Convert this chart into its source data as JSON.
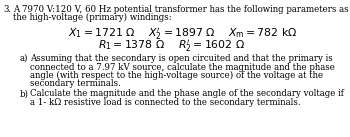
{
  "number": "3.",
  "intro_line1": "A 7970 V:120 V, 60 Hz potential transformer has the following parameters as seen from",
  "intro_line2": "the high-voltage (primary) windings:",
  "eq1_x1": "$X_1 = 1721\\ \\Omega$",
  "eq1_x2": "$X^{\\prime}_2 = 1897\\ \\Omega$",
  "eq1_xm": "$X_{\\mathrm{m}} = 782\\ \\mathrm{k}\\Omega$",
  "eq2_r1": "$R_1 = 1378\\ \\Omega$",
  "eq2_r2": "$R^{\\prime}_2 = 1602\\ \\Omega$",
  "part_a_label": "a)",
  "part_a_lines": [
    "Assuming that the secondary is open circuited and that the primary is",
    "connected to a 7.97 kV source, calculate the magnitude and the phase",
    "angle (with respect to the high-voltage source) of the voltage at the",
    "secondary terminals."
  ],
  "part_b_label": "b)",
  "part_b_lines": [
    "Calculate the magnitude and the phase angle of the secondary voltage if",
    "a 1- kΩ resistive load is connected to the secondary terminals."
  ],
  "bg_color": "#ffffff",
  "text_color": "#000000",
  "font_size_intro": 6.2,
  "font_size_eq": 7.8,
  "font_size_body": 6.2
}
